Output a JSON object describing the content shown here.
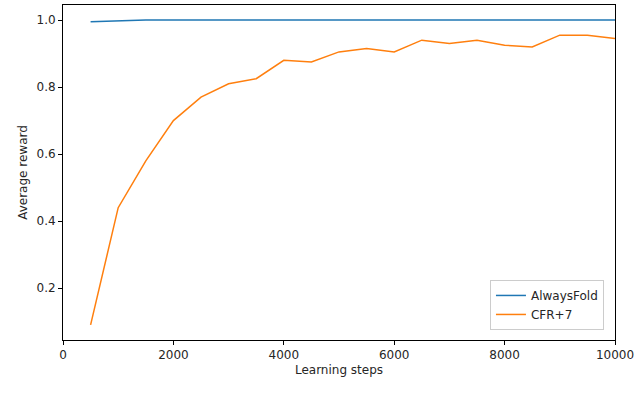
{
  "chart_data": {
    "type": "line",
    "x_label": "Learning steps",
    "y_label": "Average reward",
    "x": [
      500,
      1000,
      1500,
      2000,
      2500,
      3000,
      3500,
      4000,
      4500,
      5000,
      5500,
      6000,
      6500,
      7000,
      7500,
      8000,
      8500,
      9000,
      9500,
      10000
    ],
    "series": [
      {
        "name": "AlwaysFold",
        "color": "#1f77b4",
        "values": [
          0.995,
          0.998,
          1.0,
          1.0,
          1.0,
          1.0,
          1.0,
          1.0,
          1.0,
          1.0,
          1.0,
          1.0,
          1.0,
          1.0,
          1.0,
          1.0,
          1.0,
          1.0,
          1.0,
          1.0
        ]
      },
      {
        "name": "CFR+7",
        "color": "#ff7f0e",
        "values": [
          0.09,
          0.44,
          0.58,
          0.7,
          0.77,
          0.81,
          0.825,
          0.88,
          0.875,
          0.905,
          0.915,
          0.905,
          0.94,
          0.93,
          0.94,
          0.925,
          0.92,
          0.955,
          0.955,
          0.945
        ]
      }
    ],
    "xlim": [
      0,
      10000
    ],
    "xticks": [
      0,
      2000,
      4000,
      6000,
      8000,
      10000
    ],
    "ylim": [
      0.045,
      1.045
    ],
    "yticks": [
      0.2,
      0.4,
      0.6,
      0.8,
      {
        "value": 1.0,
        "label": "1.0"
      }
    ],
    "grid": false,
    "legend": "lower right"
  }
}
